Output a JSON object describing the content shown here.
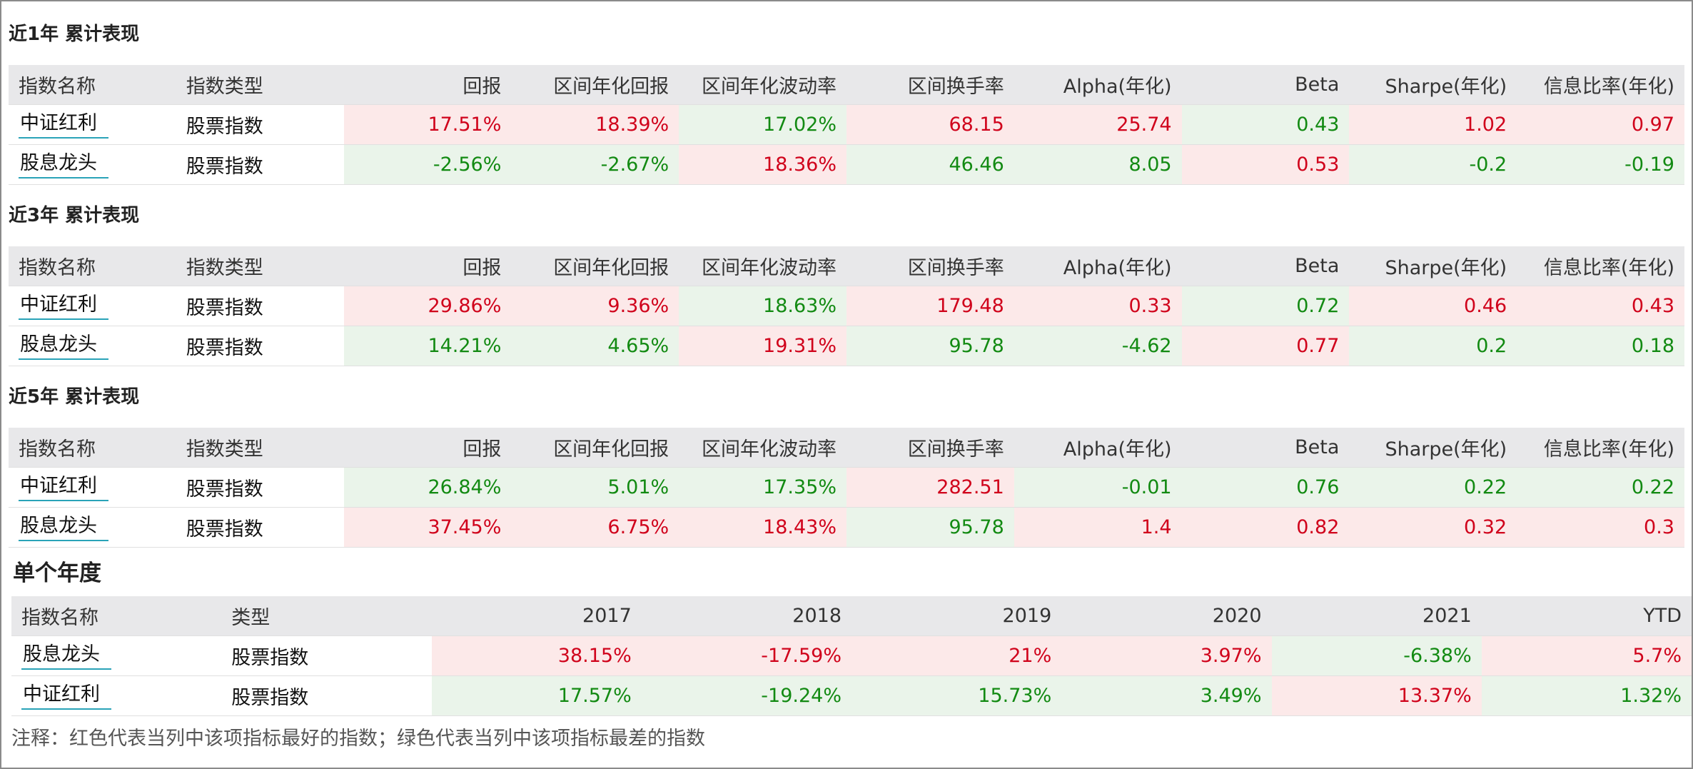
{
  "sections": [
    {
      "title": "近1年 累计表现",
      "header": [
        "指数名称",
        "指数类型",
        "回报",
        "区间年化回报",
        "区间年化波动率",
        "区间换手率",
        "Alpha(年化)",
        "Beta",
        "Sharpe(年化)",
        "信息比率(年化)"
      ],
      "rows": [
        [
          "中证红利",
          "股票指数",
          "17.51%",
          "18.39%",
          "17.02%",
          "68.15",
          "25.74",
          "0.43",
          "1.02",
          "0.97"
        ],
        [
          "股息龙头",
          "股票指数",
          "-2.56%",
          "-2.67%",
          "18.36%",
          "46.46",
          "8.05",
          "0.53",
          "-0.2",
          "-0.19"
        ]
      ]
    },
    {
      "title": "近3年 累计表现",
      "header": [
        "指数名称",
        "指数类型",
        "回报",
        "区间年化回报",
        "区间年化波动率",
        "区间换手率",
        "Alpha(年化)",
        "Beta",
        "Sharpe(年化)",
        "信息比率(年化)"
      ],
      "rows": [
        [
          "中证红利",
          "股票指数",
          "29.86%",
          "9.36%",
          "18.63%",
          "179.48",
          "0.33",
          "0.72",
          "0.46",
          "0.43"
        ],
        [
          "股息龙头",
          "股票指数",
          "14.21%",
          "4.65%",
          "19.31%",
          "95.78",
          "-4.62",
          "0.77",
          "0.2",
          "0.18"
        ]
      ]
    },
    {
      "title": "近5年 累计表现",
      "header": [
        "指数名称",
        "指数类型",
        "回报",
        "区间年化回报",
        "区间年化波动率",
        "区间换手率",
        "Alpha(年化)",
        "Beta",
        "Sharpe(年化)",
        "信息比率(年化)"
      ],
      "rows": [
        [
          "中证红利",
          "股票指数",
          "26.84%",
          "5.01%",
          "17.35%",
          "282.51",
          "-0.01",
          "0.76",
          "0.22",
          "0.22"
        ],
        [
          "股息龙头",
          "股票指数",
          "37.45%",
          "6.75%",
          "18.43%",
          "95.78",
          "1.4",
          "0.82",
          "0.32",
          "0.3"
        ]
      ]
    },
    {
      "title": "单个年度",
      "header": [
        "指数名称",
        "类型",
        "2017",
        "2018",
        "2019",
        "2020",
        "2021",
        "YTD"
      ],
      "rows": [
        [
          "股息龙头",
          "股票指数",
          "38.15%",
          "-17.59%",
          "21%",
          "3.97%",
          "-6.38%",
          "5.7%"
        ],
        [
          "中证红利",
          "股票指数",
          "17.57%",
          "-19.24%",
          "15.73%",
          "3.49%",
          "13.37%",
          "1.32%"
        ]
      ]
    }
  ],
  "note": "注释：红色代表当列中该项指标最好的指数；绿色代表当列中该项指标最差的指数",
  "best_color": "#d0021b",
  "best_bg": "#fce9e9",
  "worst_color": "#128a12",
  "worst_bg": "#eaf4ea"
}
